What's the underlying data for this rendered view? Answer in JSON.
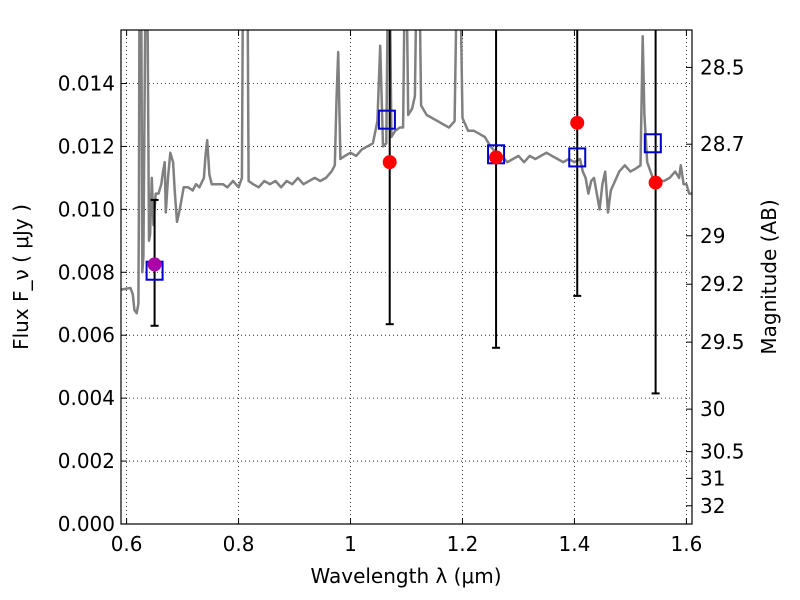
{
  "chart_data": {
    "type": "scatter",
    "title": "",
    "xlabel": "Wavelength  λ (μm)",
    "ylabel": "Flux  F_ν  ( μJy )",
    "ylabel_right": "Magnitude (AB)",
    "xlim": [
      0.59,
      1.61
    ],
    "ylim": [
      0.0,
      0.0157
    ],
    "grid": true,
    "grid_style": "dotted",
    "x_ticks": [
      0.6,
      0.8,
      1.0,
      1.2,
      1.4,
      1.6
    ],
    "x_tick_labels": [
      "0.6",
      "0.8",
      "1",
      "1.2",
      "1.4",
      "1.6"
    ],
    "y_ticks": [
      0.0,
      0.002,
      0.004,
      0.006,
      0.008,
      0.01,
      0.012,
      0.014
    ],
    "y_tick_labels": [
      "0.000",
      "0.002",
      "0.004",
      "0.006",
      "0.008",
      "0.010",
      "0.012",
      "0.014"
    ],
    "right_ticks": [
      {
        "label": "28.5",
        "flux": 0.01451
      },
      {
        "label": "28.7",
        "flux": 0.01207
      },
      {
        "label": "29",
        "flux": 0.00916
      },
      {
        "label": "29.2",
        "flux": 0.00762
      },
      {
        "label": "29.5",
        "flux": 0.00578
      },
      {
        "label": "30",
        "flux": 0.00365
      },
      {
        "label": "30.5",
        "flux": 0.0023
      },
      {
        "label": "31",
        "flux": 0.00145
      },
      {
        "label": "32",
        "flux": 0.00058
      }
    ],
    "model_spectrum": {
      "color": "#808080",
      "points": [
        [
          0.59,
          0.00745
        ],
        [
          0.6,
          0.00748
        ],
        [
          0.607,
          0.0075
        ],
        [
          0.611,
          0.0073
        ],
        [
          0.614,
          0.0068
        ],
        [
          0.618,
          0.0067
        ],
        [
          0.621,
          0.007
        ],
        [
          0.622,
          0.01
        ],
        [
          0.623,
          0.0175
        ],
        [
          0.626,
          0.0175
        ],
        [
          0.628,
          0.008
        ],
        [
          0.63,
          0.0085
        ],
        [
          0.634,
          0.0175
        ],
        [
          0.637,
          0.0175
        ],
        [
          0.64,
          0.009
        ],
        [
          0.642,
          0.0092
        ],
        [
          0.645,
          0.011
        ],
        [
          0.648,
          0.0095
        ],
        [
          0.652,
          0.0105
        ],
        [
          0.657,
          0.0105
        ],
        [
          0.662,
          0.0108
        ],
        [
          0.665,
          0.0112
        ],
        [
          0.668,
          0.0115
        ],
        [
          0.67,
          0.0099
        ],
        [
          0.674,
          0.011
        ],
        [
          0.678,
          0.0118
        ],
        [
          0.683,
          0.0115
        ],
        [
          0.686,
          0.0106
        ],
        [
          0.69,
          0.0096
        ],
        [
          0.695,
          0.01
        ],
        [
          0.702,
          0.0107
        ],
        [
          0.71,
          0.0107
        ],
        [
          0.718,
          0.0106
        ],
        [
          0.724,
          0.0108
        ],
        [
          0.73,
          0.0107
        ],
        [
          0.738,
          0.011
        ],
        [
          0.741,
          0.0117
        ],
        [
          0.744,
          0.0122
        ],
        [
          0.748,
          0.0111
        ],
        [
          0.752,
          0.0108
        ],
        [
          0.762,
          0.0108
        ],
        [
          0.772,
          0.0108
        ],
        [
          0.78,
          0.0107
        ],
        [
          0.79,
          0.0109
        ],
        [
          0.8,
          0.0107
        ],
        [
          0.806,
          0.011
        ],
        [
          0.808,
          0.0175
        ],
        [
          0.812,
          0.0175
        ],
        [
          0.816,
          0.0175
        ],
        [
          0.818,
          0.0109
        ],
        [
          0.826,
          0.0108
        ],
        [
          0.836,
          0.0107
        ],
        [
          0.846,
          0.0109
        ],
        [
          0.856,
          0.0108
        ],
        [
          0.866,
          0.0109
        ],
        [
          0.876,
          0.0107
        ],
        [
          0.886,
          0.0109
        ],
        [
          0.896,
          0.0108
        ],
        [
          0.906,
          0.011
        ],
        [
          0.916,
          0.0108
        ],
        [
          0.926,
          0.0109
        ],
        [
          0.936,
          0.011
        ],
        [
          0.946,
          0.0109
        ],
        [
          0.956,
          0.011
        ],
        [
          0.966,
          0.0112
        ],
        [
          0.972,
          0.0114
        ],
        [
          0.975,
          0.0135
        ],
        [
          0.978,
          0.015
        ],
        [
          0.982,
          0.0116
        ],
        [
          0.99,
          0.0117
        ],
        [
          1.0,
          0.0118
        ],
        [
          1.01,
          0.0117
        ],
        [
          1.02,
          0.0119
        ],
        [
          1.03,
          0.012
        ],
        [
          1.04,
          0.0121
        ],
        [
          1.048,
          0.0128
        ],
        [
          1.053,
          0.0152
        ],
        [
          1.058,
          0.012
        ],
        [
          1.064,
          0.0121
        ],
        [
          1.067,
          0.0175
        ],
        [
          1.07,
          0.0175
        ],
        [
          1.073,
          0.0123
        ],
        [
          1.08,
          0.0125
        ],
        [
          1.088,
          0.0126
        ],
        [
          1.094,
          0.0126
        ],
        [
          1.097,
          0.0175
        ],
        [
          1.1,
          0.0175
        ],
        [
          1.103,
          0.013
        ],
        [
          1.11,
          0.0132
        ],
        [
          1.115,
          0.0136
        ],
        [
          1.118,
          0.0175
        ],
        [
          1.123,
          0.0175
        ],
        [
          1.126,
          0.0133
        ],
        [
          1.136,
          0.013
        ],
        [
          1.146,
          0.0129
        ],
        [
          1.156,
          0.0128
        ],
        [
          1.166,
          0.0127
        ],
        [
          1.176,
          0.0126
        ],
        [
          1.186,
          0.0128
        ],
        [
          1.19,
          0.0175
        ],
        [
          1.196,
          0.0175
        ],
        [
          1.2,
          0.0129
        ],
        [
          1.21,
          0.0125
        ],
        [
          1.22,
          0.0125
        ],
        [
          1.23,
          0.0124
        ],
        [
          1.24,
          0.0123
        ],
        [
          1.25,
          0.012
        ],
        [
          1.26,
          0.0118
        ],
        [
          1.27,
          0.0117
        ],
        [
          1.28,
          0.0115
        ],
        [
          1.29,
          0.0116
        ],
        [
          1.3,
          0.0117
        ],
        [
          1.31,
          0.0115
        ],
        [
          1.32,
          0.0117
        ],
        [
          1.33,
          0.0116
        ],
        [
          1.34,
          0.0117
        ],
        [
          1.35,
          0.0118
        ],
        [
          1.36,
          0.0117
        ],
        [
          1.37,
          0.0116
        ],
        [
          1.38,
          0.0115
        ],
        [
          1.39,
          0.0116
        ],
        [
          1.4,
          0.0115
        ],
        [
          1.41,
          0.0116
        ],
        [
          1.415,
          0.0112
        ],
        [
          1.42,
          0.011
        ],
        [
          1.425,
          0.0105
        ],
        [
          1.43,
          0.0109
        ],
        [
          1.435,
          0.011
        ],
        [
          1.44,
          0.0105
        ],
        [
          1.445,
          0.01
        ],
        [
          1.45,
          0.0108
        ],
        [
          1.455,
          0.0112
        ],
        [
          1.46,
          0.0099
        ],
        [
          1.465,
          0.0106
        ],
        [
          1.47,
          0.0108
        ],
        [
          1.48,
          0.0112
        ],
        [
          1.49,
          0.0114
        ],
        [
          1.5,
          0.0112
        ],
        [
          1.51,
          0.0113
        ],
        [
          1.518,
          0.0114
        ],
        [
          1.522,
          0.0155
        ],
        [
          1.525,
          0.013
        ],
        [
          1.53,
          0.0115
        ],
        [
          1.54,
          0.011
        ],
        [
          1.55,
          0.0109
        ],
        [
          1.56,
          0.0109
        ],
        [
          1.57,
          0.011
        ],
        [
          1.58,
          0.0112
        ],
        [
          1.587,
          0.011
        ],
        [
          1.59,
          0.0114
        ],
        [
          1.595,
          0.0108
        ],
        [
          1.6,
          0.0108
        ],
        [
          1.605,
          0.0105
        ],
        [
          1.61,
          0.0105
        ]
      ]
    },
    "model_photometry": {
      "marker": "open-square",
      "color": "#0000cc",
      "points": [
        {
          "x": 0.65,
          "y": 0.00805
        },
        {
          "x": 1.065,
          "y": 0.01285
        },
        {
          "x": 1.26,
          "y": 0.01175
        },
        {
          "x": 1.405,
          "y": 0.01165
        },
        {
          "x": 1.54,
          "y": 0.0121
        }
      ]
    },
    "observed_photometry": {
      "marker": "filled-circle",
      "color": "#ff0000",
      "points": [
        {
          "x": 0.65,
          "y": 0.00825,
          "yerr_low": 0.0063,
          "yerr_high": 0.0103,
          "color": "#aa00aa"
        },
        {
          "x": 1.07,
          "y": 0.0115,
          "yerr_low": 0.00635,
          "yerr_high": 0.0175
        },
        {
          "x": 1.26,
          "y": 0.01165,
          "yerr_low": 0.0056,
          "yerr_high": 0.0175
        },
        {
          "x": 1.405,
          "y": 0.01275,
          "yerr_low": 0.00725,
          "yerr_high": 0.0175
        },
        {
          "x": 1.545,
          "y": 0.01085,
          "yerr_low": 0.00415,
          "yerr_high": 0.0175
        }
      ]
    }
  }
}
